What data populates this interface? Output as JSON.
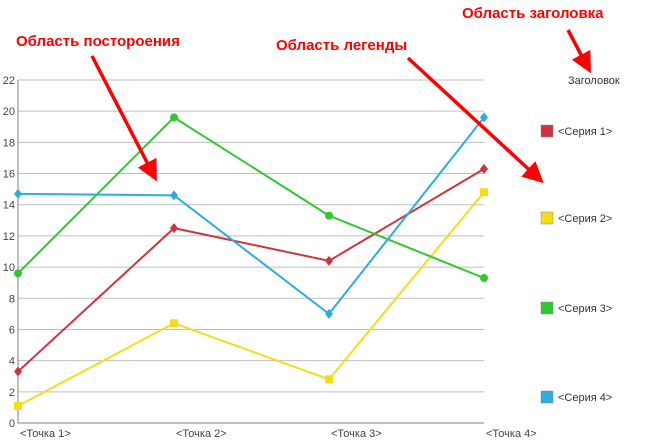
{
  "callouts": {
    "title_area": "Область заголовка",
    "plot_area": "Область постороения",
    "legend_area": "Область легенды"
  },
  "chart_data": {
    "type": "line",
    "title": "Заголовок",
    "categories": [
      "<Точка 1>",
      "<Точка 2>",
      "<Точка 3>",
      "<Точка 4>"
    ],
    "ylim": [
      0,
      22
    ],
    "yticks": [
      0,
      2,
      4,
      6,
      8,
      10,
      12,
      14,
      16,
      18,
      20,
      22
    ],
    "grid": true,
    "legend_position": "right",
    "series": [
      {
        "name": "<Серия 1>",
        "color": "#d0343a",
        "marker": "diamond",
        "values": [
          3.3,
          12.5,
          10.4,
          16.3
        ]
      },
      {
        "name": "<Серия 2>",
        "color": "#f5dc19",
        "marker": "square",
        "values": [
          1.1,
          6.4,
          2.8,
          14.8
        ]
      },
      {
        "name": "<Серия 3>",
        "color": "#2ec92e",
        "marker": "circle",
        "values": [
          9.6,
          19.6,
          13.3,
          9.3
        ]
      },
      {
        "name": "<Серия 4>",
        "color": "#2aaee2",
        "marker": "diamond",
        "values": [
          14.7,
          14.6,
          7.0,
          19.6
        ]
      }
    ]
  }
}
